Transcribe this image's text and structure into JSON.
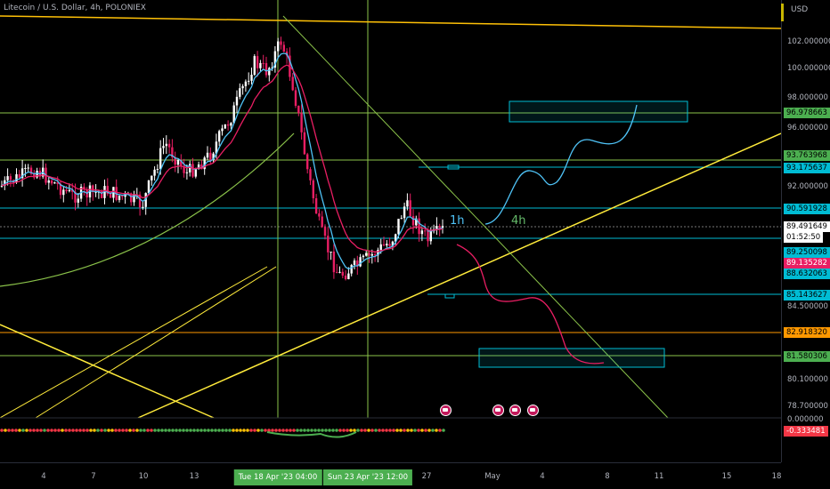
{
  "chart_title": "Litecoin / U.S. Dollar, 4h, POLONIEX",
  "currency": "USD",
  "price_ticks": [
    "102.000000",
    "100.000000",
    "98.000000",
    "96.000000",
    "92.000000",
    "84.500000",
    "80.100000",
    "78.700000"
  ],
  "price_tags": [
    {
      "text": "96.978663",
      "bg": "#4caf50",
      "fg": "#000000"
    },
    {
      "text": "93.763968",
      "bg": "#4caf50",
      "fg": "#000000"
    },
    {
      "text": "93.175637",
      "bg": "#00bcd4",
      "fg": "#000000"
    },
    {
      "text": "90.591928",
      "bg": "#00bcd4",
      "fg": "#000000"
    },
    {
      "text": "89.491649",
      "bg": "#ffffff",
      "fg": "#000000"
    },
    {
      "text": "01:52:50",
      "bg": "#ffffff",
      "fg": "#000000"
    },
    {
      "text": "89.250098",
      "bg": "#00bcd4",
      "fg": "#000000"
    },
    {
      "text": "89.135282",
      "bg": "#e91e63",
      "fg": "#ffffff"
    },
    {
      "text": "88.632063",
      "bg": "#00bcd4",
      "fg": "#000000"
    },
    {
      "text": "85.143627",
      "bg": "#00bcd4",
      "fg": "#000000"
    },
    {
      "text": "82.918320",
      "bg": "#ff9800",
      "fg": "#000000"
    },
    {
      "text": "81.580306",
      "bg": "#4caf50",
      "fg": "#000000"
    }
  ],
  "osc_ticks": [
    "0.000000"
  ],
  "osc_tag": {
    "text": "-0.333481",
    "bg": "#f23645",
    "fg": "#ffffff"
  },
  "time_ticks": [
    "4",
    "7",
    "10",
    "13",
    "27",
    "May",
    "4",
    "8",
    "11",
    "15",
    "18"
  ],
  "time_tags": [
    "Tue 18 Apr '23   04:00",
    "Sun 23 Apr '23   12:00"
  ],
  "timeframe_labels": [
    {
      "text": "1h",
      "color": "#4fc3f7"
    },
    {
      "text": "4h",
      "color": "#66bb6a"
    }
  ],
  "colors": {
    "candle_up": "#ffffff",
    "candle_down": "#e91e63",
    "ema_fast": "#4fc3f7",
    "ema_slow": "#e91e63",
    "trend_yellow": "#ffeb3b",
    "green_line": "#8bc34a",
    "cyan_line": "#00bcd4",
    "orange_line": "#ff9800"
  },
  "event_icons": [
    "flag-icon",
    "flag-icon",
    "flag-icon",
    "flag-icon"
  ]
}
